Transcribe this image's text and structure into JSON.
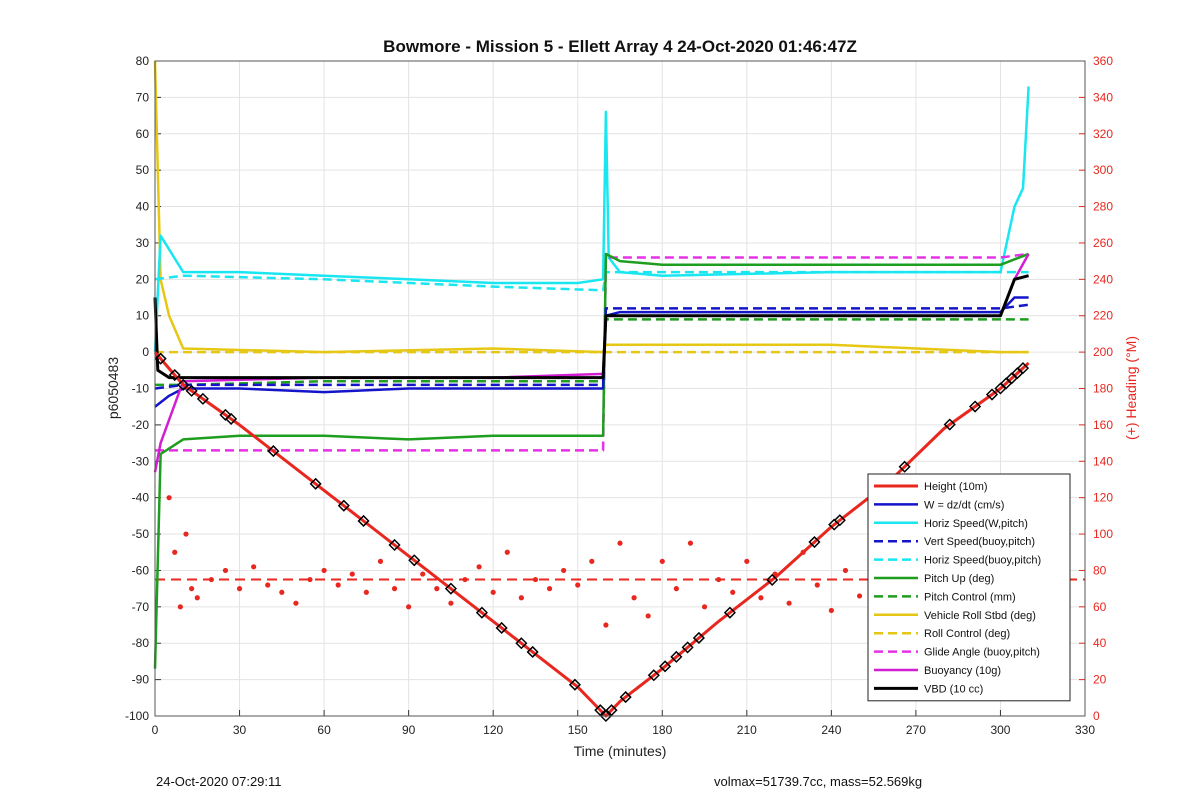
{
  "chart_data": {
    "type": "line",
    "title": "Bowmore - Mission 5 - Ellett Array 4 24-Oct-2020 01:46:47Z",
    "xlabel": "Time (minutes)",
    "ylabel": "p6050483",
    "ylabel_right": "(+) Heading (°M)",
    "xlim": [
      0,
      330
    ],
    "ylim": [
      -100,
      80
    ],
    "ylim_right": [
      0,
      360
    ],
    "xticks": [
      "0",
      "30",
      "60",
      "90",
      "120",
      "150",
      "180",
      "210",
      "240",
      "270",
      "300",
      "330"
    ],
    "yticks": [
      "80",
      "70",
      "60",
      "50",
      "40",
      "30",
      "20",
      "10",
      "0",
      "-10",
      "-20",
      "-30",
      "-40",
      "-50",
      "-60",
      "-70",
      "-80",
      "-90",
      "-100"
    ],
    "yticks_right": [
      "360",
      "340",
      "320",
      "300",
      "280",
      "260",
      "240",
      "220",
      "200",
      "180",
      "160",
      "140",
      "120",
      "100",
      "80",
      "60",
      "40",
      "20",
      "0"
    ],
    "grid": true,
    "legend_position": "lower-right",
    "colors": {
      "height": "#e8271f",
      "w": "#1414c8",
      "horiz": "#19e6f0",
      "pitch": "#1e9e1e",
      "roll": "#e6c814",
      "glide": "#e632e6",
      "buoy": "#d21ed2",
      "vbd": "#000000"
    },
    "series": [
      {
        "name": "Height (10m)",
        "x": [
          0,
          10,
          30,
          60,
          90,
          120,
          150,
          160,
          165,
          180,
          200,
          220,
          240,
          260,
          280,
          300,
          310
        ],
        "values": [
          0,
          -9,
          -20,
          -38,
          -56,
          -74,
          -92,
          -100,
          -96,
          -87,
          -74,
          -62,
          -48,
          -36,
          -21,
          -10,
          -3
        ]
      },
      {
        "name": "W = dz/dt (cm/s)",
        "x": [
          0,
          5,
          10,
          30,
          60,
          90,
          120,
          150,
          159,
          160,
          165,
          180,
          240,
          280,
          300,
          305,
          310
        ],
        "values": [
          -15,
          -12,
          -10,
          -10,
          -11,
          -10,
          -10,
          -10,
          -10,
          10,
          11,
          11,
          11,
          11,
          11,
          15,
          15
        ]
      },
      {
        "name": "Horiz Speed(W,pitch)",
        "x": [
          0,
          2,
          10,
          30,
          60,
          90,
          120,
          150,
          159,
          160,
          161,
          165,
          180,
          240,
          280,
          300,
          305,
          308,
          310
        ],
        "values": [
          0,
          32,
          22,
          22,
          21,
          20,
          19,
          19,
          20,
          66,
          26,
          22,
          21,
          22,
          22,
          22,
          40,
          45,
          73
        ]
      },
      {
        "name": "Vert Speed(buoy,pitch)",
        "x": [
          0,
          10,
          60,
          120,
          159,
          160,
          180,
          240,
          300,
          310
        ],
        "values": [
          -10,
          -9,
          -9,
          -9,
          -9,
          12,
          12,
          12,
          12,
          13
        ]
      },
      {
        "name": "Horiz Speed(buoy,pitch)",
        "x": [
          0,
          10,
          60,
          120,
          159,
          160,
          180,
          240,
          300,
          310
        ],
        "values": [
          20,
          21,
          20,
          18,
          17,
          22,
          22,
          22,
          22,
          22
        ]
      },
      {
        "name": "Pitch Up (deg)",
        "x": [
          0,
          2,
          10,
          30,
          60,
          90,
          120,
          150,
          159,
          160,
          165,
          180,
          240,
          300,
          310
        ],
        "values": [
          -87,
          -28,
          -24,
          -23,
          -23,
          -24,
          -23,
          -23,
          -23,
          27,
          25,
          24,
          24,
          24,
          27
        ]
      },
      {
        "name": "Pitch Control (mm)",
        "x": [
          0,
          10,
          60,
          120,
          159,
          160,
          180,
          240,
          300,
          310
        ],
        "values": [
          -9,
          -9,
          -8,
          -8,
          -8,
          9,
          9,
          9,
          9,
          9
        ]
      },
      {
        "name": "Vehicle Roll Stbd (deg)",
        "x": [
          0,
          2,
          5,
          10,
          60,
          120,
          159,
          160,
          180,
          240,
          300,
          310
        ],
        "values": [
          80,
          20,
          10,
          1,
          0,
          1,
          0,
          2,
          2,
          2,
          0,
          0
        ]
      },
      {
        "name": "Roll Control (deg)",
        "x": [
          0,
          10,
          60,
          120,
          159,
          160,
          180,
          240,
          300,
          310
        ],
        "values": [
          0,
          0,
          0,
          0,
          0,
          0,
          0,
          0,
          0,
          0
        ]
      },
      {
        "name": "Glide Angle (buoy,pitch)",
        "x": [
          0,
          10,
          60,
          120,
          159,
          160,
          180,
          240,
          300,
          310
        ],
        "values": [
          -27,
          -27,
          -27,
          -27,
          -27,
          26,
          26,
          26,
          26,
          27
        ]
      },
      {
        "name": "Buoyancy (10g)",
        "x": [
          0,
          2,
          10,
          60,
          120,
          159,
          160,
          180,
          240,
          300,
          305,
          310
        ],
        "values": [
          -33,
          -25,
          -8,
          -7,
          -7,
          -6,
          10,
          10,
          10,
          10,
          20,
          27
        ]
      },
      {
        "name": "VBD (10 cc)",
        "x": [
          0,
          1,
          5,
          60,
          120,
          159,
          160,
          180,
          240,
          300,
          305,
          310
        ],
        "values": [
          15,
          -5,
          -7,
          -7,
          -7,
          -7,
          10,
          10,
          10,
          10,
          20,
          21
        ]
      }
    ],
    "heading_mean": 75,
    "heading_points": [
      [
        5,
        120
      ],
      [
        7,
        90
      ],
      [
        9,
        60
      ],
      [
        11,
        100
      ],
      [
        13,
        70
      ],
      [
        15,
        65
      ],
      [
        20,
        75
      ],
      [
        25,
        80
      ],
      [
        30,
        70
      ],
      [
        35,
        82
      ],
      [
        40,
        72
      ],
      [
        45,
        68
      ],
      [
        50,
        62
      ],
      [
        55,
        75
      ],
      [
        60,
        80
      ],
      [
        65,
        72
      ],
      [
        70,
        78
      ],
      [
        75,
        68
      ],
      [
        80,
        85
      ],
      [
        85,
        70
      ],
      [
        90,
        60
      ],
      [
        95,
        78
      ],
      [
        100,
        70
      ],
      [
        105,
        62
      ],
      [
        110,
        75
      ],
      [
        115,
        82
      ],
      [
        120,
        68
      ],
      [
        125,
        90
      ],
      [
        130,
        65
      ],
      [
        135,
        75
      ],
      [
        140,
        70
      ],
      [
        145,
        80
      ],
      [
        150,
        72
      ],
      [
        155,
        85
      ],
      [
        160,
        50
      ],
      [
        165,
        95
      ],
      [
        170,
        65
      ],
      [
        175,
        55
      ],
      [
        180,
        85
      ],
      [
        185,
        70
      ],
      [
        190,
        95
      ],
      [
        195,
        60
      ],
      [
        200,
        75
      ],
      [
        205,
        68
      ],
      [
        210,
        85
      ],
      [
        215,
        65
      ],
      [
        220,
        78
      ],
      [
        225,
        62
      ],
      [
        230,
        90
      ],
      [
        235,
        72
      ],
      [
        240,
        58
      ],
      [
        245,
        80
      ],
      [
        250,
        66
      ],
      [
        255,
        74
      ],
      [
        260,
        84
      ],
      [
        265,
        60
      ],
      [
        270,
        78
      ],
      [
        275,
        68
      ],
      [
        280,
        88
      ],
      [
        285,
        64
      ],
      [
        290,
        76
      ],
      [
        295,
        70
      ],
      [
        300,
        82
      ],
      [
        305,
        60
      ],
      [
        308,
        40
      ],
      [
        310,
        30
      ]
    ],
    "markers_x": [
      2,
      7,
      10,
      13,
      17,
      25,
      27,
      42,
      57,
      67,
      74,
      85,
      92,
      105,
      116,
      123,
      130,
      134,
      149,
      158,
      160,
      162,
      167,
      177,
      181,
      185,
      189,
      193,
      204,
      219,
      234,
      241,
      243,
      260,
      266,
      282,
      291,
      297,
      300,
      302,
      304,
      306,
      308
    ]
  },
  "footer": {
    "timestamp": "24-Oct-2020 07:29:11",
    "stats": "volmax=51739.7cc, mass=52.569kg"
  }
}
